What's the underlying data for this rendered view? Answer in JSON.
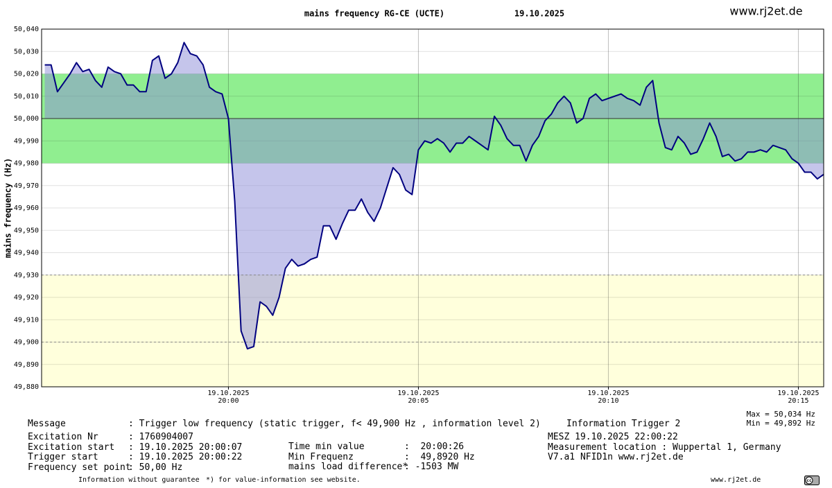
{
  "chart_data": {
    "type": "line",
    "title": "mains frequency RG-CE (UCTE)",
    "date": "19.10.2025",
    "site": "www.rj2et.de",
    "ylabel": "mains frequency (Hz)",
    "stats": [
      "Max = 50,034 Hz",
      "Min = 49,892 Hz"
    ],
    "x": [
      "19:55:10",
      "19:55:20",
      "19:55:30",
      "19:55:40",
      "19:55:50",
      "19:56:00",
      "19:56:10",
      "19:56:20",
      "19:56:30",
      "19:56:40",
      "19:56:50",
      "19:57:00",
      "19:57:10",
      "19:57:20",
      "19:57:30",
      "19:57:40",
      "19:57:50",
      "19:58:00",
      "19:58:10",
      "19:58:20",
      "19:58:30",
      "19:58:40",
      "19:58:50",
      "19:59:00",
      "19:59:10",
      "19:59:20",
      "19:59:30",
      "19:59:40",
      "19:59:50",
      "20:00:00",
      "20:00:10",
      "20:00:20",
      "20:00:30",
      "20:00:40",
      "20:00:50",
      "20:01:00",
      "20:01:10",
      "20:01:20",
      "20:01:30",
      "20:01:40",
      "20:01:50",
      "20:02:00",
      "20:02:10",
      "20:02:20",
      "20:02:30",
      "20:02:40",
      "20:02:50",
      "20:03:00",
      "20:03:10",
      "20:03:20",
      "20:03:30",
      "20:03:40",
      "20:03:50",
      "20:04:00",
      "20:04:10",
      "20:04:20",
      "20:04:30",
      "20:04:40",
      "20:04:50",
      "20:05:00",
      "20:05:10",
      "20:05:20",
      "20:05:30",
      "20:05:40",
      "20:05:50",
      "20:06:00",
      "20:06:10",
      "20:06:20",
      "20:06:30",
      "20:06:40",
      "20:06:50",
      "20:07:00",
      "20:07:10",
      "20:07:20",
      "20:07:30",
      "20:07:40",
      "20:07:50",
      "20:08:00",
      "20:08:10",
      "20:08:20",
      "20:08:30",
      "20:08:40",
      "20:08:50",
      "20:09:00",
      "20:09:10",
      "20:09:20",
      "20:09:30",
      "20:09:40",
      "20:09:50",
      "20:10:00",
      "20:10:10",
      "20:10:20",
      "20:10:30",
      "20:10:40",
      "20:10:50",
      "20:11:00",
      "20:11:10",
      "20:11:20",
      "20:11:30",
      "20:11:40",
      "20:11:50",
      "20:12:00",
      "20:12:10",
      "20:12:20",
      "20:12:30",
      "20:12:40",
      "20:12:50",
      "20:13:00",
      "20:13:10",
      "20:13:20",
      "20:13:30",
      "20:13:40",
      "20:13:50",
      "20:14:00",
      "20:14:10",
      "20:14:20",
      "20:14:30",
      "20:14:40",
      "20:14:50",
      "20:15:00",
      "20:15:10",
      "20:15:20",
      "20:15:30",
      "20:15:40"
    ],
    "series": [
      {
        "color": "#000080",
        "fill": "#8c8cd8",
        "values": [
          50.024,
          50.024,
          50.012,
          50.016,
          50.02,
          50.025,
          50.021,
          50.022,
          50.017,
          50.014,
          50.023,
          50.021,
          50.02,
          50.015,
          50.015,
          50.012,
          50.012,
          50.026,
          50.028,
          50.018,
          50.02,
          50.025,
          50.034,
          50.029,
          50.028,
          50.024,
          50.014,
          50.012,
          50.011,
          50.0,
          49.963,
          49.905,
          49.897,
          49.898,
          49.918,
          49.916,
          49.912,
          49.92,
          49.933,
          49.937,
          49.934,
          49.935,
          49.937,
          49.938,
          49.952,
          49.952,
          49.946,
          49.953,
          49.959,
          49.959,
          49.964,
          49.958,
          49.954,
          49.96,
          49.969,
          49.978,
          49.975,
          49.968,
          49.966,
          49.986,
          49.99,
          49.989,
          49.991,
          49.989,
          49.985,
          49.989,
          49.989,
          49.992,
          49.99,
          49.988,
          49.986,
          50.001,
          49.997,
          49.991,
          49.988,
          49.988,
          49.981,
          49.988,
          49.992,
          49.999,
          50.002,
          50.007,
          50.01,
          50.007,
          49.998,
          50.0,
          50.009,
          50.011,
          50.008,
          50.009,
          50.01,
          50.011,
          50.009,
          50.008,
          50.006,
          50.014,
          50.017,
          49.998,
          49.987,
          49.986,
          49.992,
          49.989,
          49.984,
          49.985,
          49.991,
          49.998,
          49.992,
          49.983,
          49.984,
          49.981,
          49.982,
          49.985,
          49.985,
          49.986,
          49.985,
          49.988,
          49.987,
          49.986,
          49.982,
          49.98,
          49.976,
          49.976,
          49.973,
          49.975
        ]
      }
    ],
    "fill_baseline": 50.0,
    "xlim": [
      "19:55:05",
      "20:15:40"
    ],
    "xticks": [
      {
        "value": "20:00:00",
        "label": "19.10.2025\n20:00"
      },
      {
        "value": "20:05:00",
        "label": "19.10.2025\n20:05"
      },
      {
        "value": "20:10:00",
        "label": "19.10.2025\n20:10"
      },
      {
        "value": "20:15:00",
        "label": "19.10.2025\n20:15"
      }
    ],
    "ylim": [
      49.88,
      50.04
    ],
    "yticks": [
      {
        "value": 49.88,
        "label": "49,880"
      },
      {
        "value": 49.89,
        "label": "49,890"
      },
      {
        "value": 49.9,
        "label": "49,900"
      },
      {
        "value": 49.91,
        "label": "49,910"
      },
      {
        "value": 49.92,
        "label": "49,920"
      },
      {
        "value": 49.93,
        "label": "49,930"
      },
      {
        "value": 49.94,
        "label": "49,940"
      },
      {
        "value": 49.95,
        "label": "49,950"
      },
      {
        "value": 49.96,
        "label": "49,960"
      },
      {
        "value": 49.97,
        "label": "49,970"
      },
      {
        "value": 49.98,
        "label": "49,980"
      },
      {
        "value": 49.99,
        "label": "49,990"
      },
      {
        "value": 50.0,
        "label": "50,000"
      },
      {
        "value": 50.01,
        "label": "50,010"
      },
      {
        "value": 50.02,
        "label": "50,020"
      },
      {
        "value": 50.03,
        "label": "50,030"
      },
      {
        "value": 50.04,
        "label": "50,040"
      }
    ],
    "grid": true,
    "bands": [
      {
        "from": 49.98,
        "to": 50.02,
        "color": "#90ee90"
      },
      {
        "from": 49.88,
        "to": 49.93,
        "color": "#ffffdc"
      }
    ],
    "reference_lines": [
      {
        "value": 50.0,
        "style": "solid"
      },
      {
        "value": 49.93,
        "style": "dashed"
      },
      {
        "value": 49.9,
        "style": "dashed"
      }
    ]
  },
  "footer": {
    "message": [
      "Message",
      ": Trigger low frequency (static trigger, f< 49,900 Hz , information level 2)",
      "Information Trigger 2"
    ],
    "left": [
      [
        "Excitation Nr",
        ": 1760904007"
      ],
      [
        "Excitation start",
        ": 19.10.2025 20:00:07"
      ],
      [
        "Trigger start",
        ": 19.10.2025 20:00:22"
      ],
      [
        "Frequency set point",
        ": 50,00 Hz"
      ]
    ],
    "middle": [
      [
        "Time min value",
        ":  20:00:26"
      ],
      [
        "Min Frequenz",
        ":  49,8920 Hz"
      ],
      [
        "mains load difference*",
        ": -1503 MW"
      ]
    ],
    "right": [
      "MESZ 19.10.2025 22:00:22",
      "Measurement location : Wuppertal 1, Germany",
      "V7.a1 NFID1n www.rj2et.de"
    ],
    "notes": [
      "Information without guarantee",
      "*) for value-information see website.",
      "www.rj2et.de"
    ]
  }
}
